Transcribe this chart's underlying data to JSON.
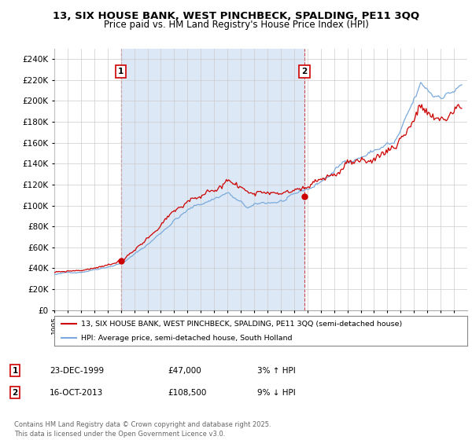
{
  "title": "13, SIX HOUSE BANK, WEST PINCHBECK, SPALDING, PE11 3QQ",
  "subtitle": "Price paid vs. HM Land Registry's House Price Index (HPI)",
  "ylim": [
    0,
    250000
  ],
  "yticks": [
    0,
    20000,
    40000,
    60000,
    80000,
    100000,
    120000,
    140000,
    160000,
    180000,
    200000,
    220000,
    240000
  ],
  "ytick_labels": [
    "£0",
    "£20K",
    "£40K",
    "£60K",
    "£80K",
    "£100K",
    "£120K",
    "£140K",
    "£160K",
    "£180K",
    "£200K",
    "£220K",
    "£240K"
  ],
  "red_line_color": "#cc0000",
  "blue_line_color": "#7aaadd",
  "blue_fill_color": "#dce8f5",
  "marker1_year": 2000.0,
  "marker1_value": 47000,
  "marker1_label": "1",
  "marker2_year": 2013.79,
  "marker2_value": 108500,
  "marker2_label": "2",
  "sale1_date": "23-DEC-1999",
  "sale1_price": "£47,000",
  "sale1_hpi": "3% ↑ HPI",
  "sale2_date": "16-OCT-2013",
  "sale2_price": "£108,500",
  "sale2_hpi": "9% ↓ HPI",
  "legend_red": "13, SIX HOUSE BANK, WEST PINCHBECK, SPALDING, PE11 3QQ (semi-detached house)",
  "legend_blue": "HPI: Average price, semi-detached house, South Holland",
  "footnote": "Contains HM Land Registry data © Crown copyright and database right 2025.\nThis data is licensed under the Open Government Licence v3.0.",
  "bg_color": "#ffffff",
  "grid_color": "#cccccc",
  "title_fontsize": 9.5,
  "subtitle_fontsize": 8.5,
  "xstart": 1995,
  "xend": 2026
}
